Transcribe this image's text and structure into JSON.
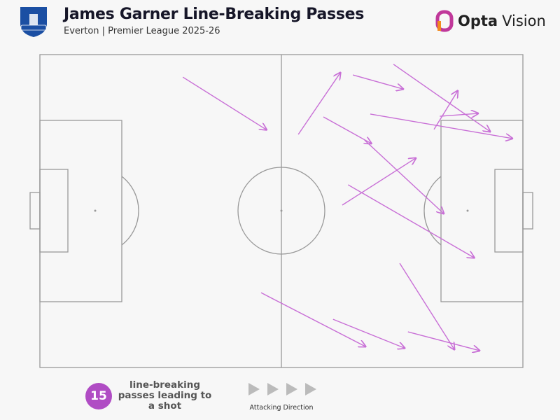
{
  "header": {
    "title": "James Garner Line-Breaking Passes",
    "subtitle": "Everton | Premier League 2025-26",
    "club_badge_text": "Everton",
    "brand": "Opta",
    "brand2": "Vision"
  },
  "colors": {
    "pass": "#c86fd6",
    "badge": "#b04cc4",
    "club": "#1b4fa3",
    "pitch_lines": "#999999"
  },
  "chart_data": {
    "type": "pass-map",
    "pitch_units": "0-100",
    "direction": "left-to-right",
    "passes": [
      {
        "start": [
          29.6,
          7.2
        ],
        "end": [
          46.9,
          24.0
        ]
      },
      {
        "start": [
          53.5,
          25.5
        ],
        "end": [
          62.2,
          5.8
        ]
      },
      {
        "start": [
          64.8,
          6.5
        ],
        "end": [
          75.2,
          11.0
        ]
      },
      {
        "start": [
          73.2,
          3.1
        ],
        "end": [
          93.2,
          24.6
        ]
      },
      {
        "start": [
          81.6,
          23.9
        ],
        "end": [
          86.5,
          11.6
        ]
      },
      {
        "start": [
          82.8,
          19.7
        ],
        "end": [
          90.7,
          18.8
        ]
      },
      {
        "start": [
          68.4,
          19.0
        ],
        "end": [
          97.8,
          26.8
        ]
      },
      {
        "start": [
          58.7,
          19.9
        ],
        "end": [
          68.6,
          28.4
        ]
      },
      {
        "start": [
          67.2,
          27.3
        ],
        "end": [
          83.6,
          50.8
        ]
      },
      {
        "start": [
          62.6,
          48.1
        ],
        "end": [
          77.8,
          33.1
        ]
      },
      {
        "start": [
          63.8,
          41.6
        ],
        "end": [
          89.9,
          64.9
        ]
      },
      {
        "start": [
          45.8,
          76.1
        ],
        "end": [
          67.4,
          93.3
        ]
      },
      {
        "start": [
          60.7,
          84.6
        ],
        "end": [
          75.5,
          93.8
        ]
      },
      {
        "start": [
          74.5,
          66.7
        ],
        "end": [
          85.8,
          94.2
        ]
      },
      {
        "start": [
          76.2,
          88.6
        ],
        "end": [
          91.0,
          94.6
        ]
      }
    ]
  },
  "footer": {
    "count": "15",
    "description": "line-breaking passes leading to a shot",
    "direction_label": "Attacking Direction"
  }
}
